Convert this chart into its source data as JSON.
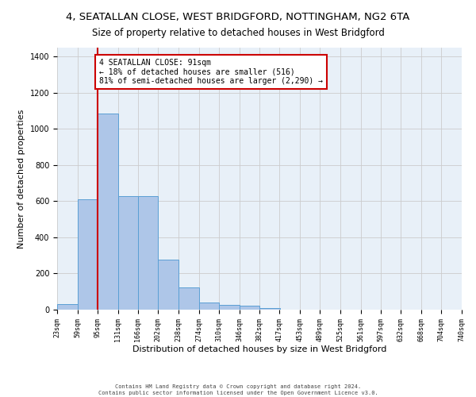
{
  "title": "4, SEATALLAN CLOSE, WEST BRIDGFORD, NOTTINGHAM, NG2 6TA",
  "subtitle": "Size of property relative to detached houses in West Bridgford",
  "xlabel": "Distribution of detached houses by size in West Bridgford",
  "ylabel": "Number of detached properties",
  "footer_line1": "Contains HM Land Registry data © Crown copyright and database right 2024.",
  "footer_line2": "Contains public sector information licensed under the Open Government Licence v3.0.",
  "annotation_text": "4 SEATALLAN CLOSE: 91sqm\n← 18% of detached houses are smaller (516)\n81% of semi-detached houses are larger (2,290) →",
  "bin_edges": [
    23,
    59,
    95,
    131,
    166,
    202,
    238,
    274,
    310,
    346,
    382,
    417,
    453,
    489,
    525,
    561,
    597,
    632,
    668,
    704,
    740
  ],
  "bar_heights": [
    30,
    610,
    1085,
    630,
    630,
    275,
    125,
    40,
    25,
    20,
    10,
    0,
    0,
    0,
    0,
    0,
    0,
    0,
    0,
    0
  ],
  "bar_color": "#aec6e8",
  "bar_edge_color": "#5a9fd4",
  "vline_x": 95,
  "vline_color": "#cc0000",
  "annotation_box_color": "#cc0000",
  "annotation_text_color": "#000000",
  "grid_color": "#cccccc",
  "bg_color": "#e8f0f8",
  "ylim": [
    0,
    1450
  ],
  "title_fontsize": 9.5,
  "subtitle_fontsize": 8.5,
  "xlabel_fontsize": 8,
  "ylabel_fontsize": 8,
  "tick_fontsize": 6,
  "annotation_fontsize": 7,
  "footer_fontsize": 5
}
